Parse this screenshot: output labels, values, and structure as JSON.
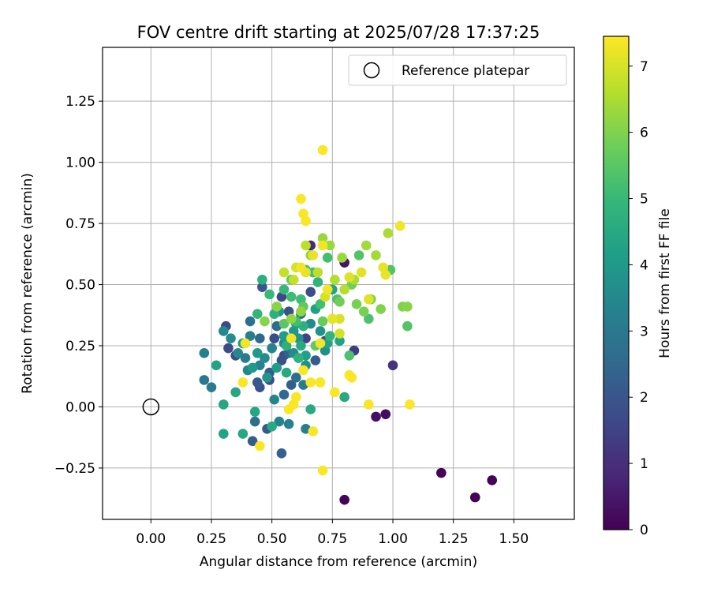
{
  "chart_data": {
    "type": "scatter",
    "title": "FOV centre drift starting at 2025/07/28 17:37:25",
    "xlabel": "Angular distance from reference (arcmin)",
    "ylabel": "Rotation from reference (arcmin)",
    "xlim": [
      -0.2,
      1.75
    ],
    "ylim": [
      -0.46,
      1.47
    ],
    "xticks": [
      0.0,
      0.25,
      0.5,
      0.75,
      1.0,
      1.25,
      1.5
    ],
    "xtick_labels": [
      "0.00",
      "0.25",
      "0.50",
      "0.75",
      "1.00",
      "1.25",
      "1.50"
    ],
    "yticks": [
      -0.25,
      0.0,
      0.25,
      0.5,
      0.75,
      1.0,
      1.25
    ],
    "ytick_labels": [
      "−0.25",
      "0.00",
      "0.25",
      "0.50",
      "0.75",
      "1.00",
      "1.25"
    ],
    "grid": true,
    "legend": {
      "position": "top-right",
      "entries": [
        {
          "label": "Reference platepar",
          "marker": "open-circle"
        }
      ]
    },
    "reference_point": {
      "label": "Reference platepar",
      "x": 0.0,
      "y": 0.0
    },
    "colorbar": {
      "label": "Hours from first FF file",
      "min": 0,
      "max": 7.45,
      "ticks": [
        0,
        1,
        2,
        3,
        4,
        5,
        6,
        7
      ],
      "colormap": "viridis",
      "colors": [
        "#440154",
        "#482878",
        "#3e4989",
        "#31688e",
        "#26828e",
        "#1f9e89",
        "#35b779",
        "#6ece58",
        "#b5de2b",
        "#fde725"
      ]
    },
    "series": [
      {
        "x_hours_y": [
          [
            0.8,
            -0.38,
            0.05
          ],
          [
            1.2,
            -0.27,
            0.05
          ],
          [
            1.34,
            -0.37,
            0.05
          ],
          [
            1.41,
            -0.3,
            0.05
          ],
          [
            0.93,
            -0.04,
            0.3
          ],
          [
            0.97,
            -0.03,
            0.3
          ],
          [
            0.8,
            0.59,
            0.4
          ],
          [
            0.66,
            0.66,
            0.9
          ],
          [
            1.0,
            0.17,
            1.1
          ],
          [
            0.84,
            0.23,
            1.3
          ],
          [
            0.31,
            0.33,
            1.6
          ],
          [
            0.32,
            0.24,
            1.7
          ],
          [
            0.35,
            0.21,
            1.8
          ],
          [
            0.54,
            0.45,
            1.6
          ],
          [
            0.64,
            0.28,
            1.5
          ],
          [
            0.57,
            0.39,
            1.9
          ],
          [
            0.51,
            0.28,
            1.7
          ],
          [
            0.55,
            0.21,
            1.8
          ],
          [
            0.45,
            0.08,
            1.9
          ],
          [
            0.49,
            0.11,
            1.7
          ],
          [
            0.72,
            0.27,
            1.6
          ],
          [
            0.66,
            0.47,
            1.8
          ],
          [
            0.54,
            0.19,
            1.9
          ],
          [
            0.46,
            0.49,
            2.0
          ],
          [
            0.44,
            0.1,
            2.1
          ],
          [
            0.42,
            -0.14,
            2.2
          ],
          [
            0.48,
            -0.09,
            2.1
          ],
          [
            0.54,
            -0.19,
            2.3
          ],
          [
            0.49,
            0.14,
            2.2
          ],
          [
            0.58,
            0.09,
            2.2
          ],
          [
            0.57,
            0.22,
            2.4
          ],
          [
            0.61,
            0.2,
            2.4
          ],
          [
            0.55,
            0.05,
            2.5
          ],
          [
            0.68,
            0.19,
            2.2
          ],
          [
            0.45,
            0.28,
            2.5
          ],
          [
            0.52,
            0.33,
            2.6
          ],
          [
            0.62,
            0.38,
            2.6
          ],
          [
            0.6,
            0.12,
            2.7
          ],
          [
            0.41,
            0.35,
            2.7
          ],
          [
            0.43,
            -0.06,
            2.7
          ],
          [
            0.22,
            0.11,
            3.0
          ],
          [
            0.25,
            0.08,
            3.1
          ],
          [
            0.22,
            0.22,
            3.2
          ],
          [
            0.39,
            0.2,
            3.1
          ],
          [
            0.41,
            0.29,
            3.2
          ],
          [
            0.45,
            0.17,
            3.3
          ],
          [
            0.5,
            0.24,
            3.3
          ],
          [
            0.53,
            -0.06,
            3.3
          ],
          [
            0.57,
            -0.07,
            3.3
          ],
          [
            0.64,
            -0.09,
            3.2
          ],
          [
            0.51,
            0.03,
            3.4
          ],
          [
            0.63,
            0.09,
            3.1
          ],
          [
            0.4,
            0.15,
            3.4
          ],
          [
            0.36,
            0.22,
            3.5
          ],
          [
            0.3,
            0.31,
            3.5
          ],
          [
            0.33,
            0.28,
            3.6
          ],
          [
            0.47,
            0.2,
            3.6
          ],
          [
            0.55,
            0.26,
            3.5
          ],
          [
            0.59,
            0.22,
            3.6
          ],
          [
            0.64,
            0.17,
            3.7
          ],
          [
            0.66,
            0.34,
            3.6
          ],
          [
            0.7,
            0.31,
            3.8
          ],
          [
            0.72,
            0.23,
            3.7
          ],
          [
            0.61,
            0.28,
            3.8
          ],
          [
            0.53,
            0.39,
            3.9
          ],
          [
            0.59,
            0.31,
            3.9
          ],
          [
            0.48,
            0.12,
            3.9
          ],
          [
            0.42,
            0.16,
            4.0
          ],
          [
            0.38,
            0.26,
            4.0
          ],
          [
            0.44,
            0.22,
            4.0
          ],
          [
            0.52,
            0.16,
            4.1
          ],
          [
            0.55,
            0.29,
            4.1
          ],
          [
            0.6,
            0.34,
            4.2
          ],
          [
            0.64,
            0.21,
            4.2
          ],
          [
            0.68,
            0.4,
            4.2
          ],
          [
            0.73,
            0.26,
            4.3
          ],
          [
            0.75,
            0.48,
            4.3
          ],
          [
            0.78,
            0.27,
            4.3
          ],
          [
            0.27,
            0.17,
            4.3
          ],
          [
            0.3,
            0.01,
            4.4
          ],
          [
            0.35,
            0.06,
            4.4
          ],
          [
            0.38,
            -0.11,
            4.4
          ],
          [
            0.3,
            -0.11,
            4.3
          ],
          [
            0.43,
            -0.02,
            4.4
          ],
          [
            0.5,
            -0.08,
            4.5
          ],
          [
            0.56,
            0.14,
            4.5
          ],
          [
            0.62,
            0.25,
            4.5
          ],
          [
            0.66,
            -0.01,
            4.5
          ],
          [
            0.8,
            0.04,
            4.5
          ],
          [
            0.46,
            0.52,
            4.7
          ],
          [
            0.51,
            0.38,
            4.7
          ],
          [
            0.56,
            0.25,
            4.7
          ],
          [
            0.61,
            0.2,
            4.8
          ],
          [
            0.63,
            0.33,
            4.7
          ],
          [
            0.69,
            0.51,
            4.8
          ],
          [
            0.74,
            0.29,
            4.9
          ],
          [
            0.44,
            0.38,
            4.9
          ],
          [
            0.49,
            0.46,
            5.0
          ],
          [
            0.55,
            0.48,
            5.0
          ],
          [
            0.58,
            0.45,
            5.1
          ],
          [
            0.62,
            0.44,
            5.1
          ],
          [
            0.67,
            0.55,
            5.2
          ],
          [
            0.7,
            0.42,
            5.2
          ],
          [
            0.64,
            0.56,
            5.1
          ],
          [
            0.6,
            0.35,
            5.2
          ],
          [
            0.73,
            0.61,
            5.2
          ],
          [
            0.77,
            0.44,
            5.3
          ],
          [
            0.82,
            0.21,
            5.3
          ],
          [
            0.86,
            0.62,
            5.4
          ],
          [
            0.9,
            0.36,
            5.3
          ],
          [
            0.99,
            0.56,
            5.4
          ],
          [
            1.06,
            0.33,
            5.4
          ],
          [
            0.55,
            0.34,
            5.5
          ],
          [
            0.58,
            0.52,
            5.6
          ],
          [
            0.63,
            0.41,
            5.6
          ],
          [
            0.68,
            0.25,
            5.6
          ],
          [
            0.71,
            0.35,
            5.7
          ],
          [
            0.75,
            0.36,
            5.8
          ],
          [
            0.78,
            0.43,
            5.8
          ],
          [
            0.83,
            0.5,
            5.8
          ],
          [
            0.85,
            0.42,
            5.9
          ],
          [
            0.88,
            0.39,
            5.9
          ],
          [
            0.91,
            0.44,
            6.0
          ],
          [
            0.95,
            0.4,
            6.0
          ],
          [
            1.04,
            0.41,
            6.0
          ],
          [
            1.06,
            0.41,
            6.1
          ],
          [
            0.47,
            0.35,
            6.1
          ],
          [
            0.52,
            0.41,
            6.1
          ],
          [
            0.58,
            0.36,
            6.2
          ],
          [
            0.62,
            0.39,
            6.2
          ],
          [
            0.66,
            0.62,
            6.2
          ],
          [
            0.71,
            0.69,
            6.3
          ],
          [
            0.74,
            0.66,
            6.3
          ],
          [
            0.79,
            0.61,
            6.3
          ],
          [
            0.89,
            0.66,
            6.4
          ],
          [
            0.93,
            0.62,
            6.4
          ],
          [
            0.98,
            0.71,
            6.5
          ],
          [
            0.84,
            0.52,
            6.5
          ],
          [
            0.8,
            0.48,
            6.6
          ],
          [
            0.76,
            0.52,
            6.6
          ],
          [
            0.69,
            0.55,
            6.7
          ],
          [
            0.64,
            0.66,
            6.7
          ],
          [
            0.59,
            0.52,
            6.8
          ],
          [
            0.55,
            0.55,
            6.8
          ],
          [
            0.6,
            0.57,
            7.0
          ],
          [
            0.72,
            0.45,
            7.0
          ],
          [
            0.78,
            0.36,
            7.0
          ],
          [
            0.82,
            0.53,
            7.1
          ],
          [
            0.87,
            0.55,
            7.1
          ],
          [
            0.96,
            0.57,
            7.2
          ],
          [
            0.97,
            0.54,
            7.2
          ],
          [
            0.9,
            0.44,
            7.1
          ],
          [
            0.78,
            0.3,
            7.0
          ],
          [
            0.71,
            1.05,
            7.4
          ],
          [
            0.62,
            0.85,
            7.4
          ],
          [
            0.63,
            0.79,
            7.4
          ],
          [
            0.64,
            0.76,
            7.4
          ],
          [
            1.03,
            0.74,
            7.3
          ],
          [
            0.71,
            0.66,
            7.3
          ],
          [
            0.67,
            0.62,
            7.2
          ],
          [
            0.64,
            0.55,
            7.2
          ],
          [
            0.62,
            0.57,
            7.3
          ],
          [
            0.73,
            0.48,
            7.3
          ],
          [
            0.58,
            0.28,
            7.3
          ],
          [
            0.63,
            0.15,
            7.4
          ],
          [
            0.66,
            0.1,
            7.4
          ],
          [
            0.7,
            0.26,
            7.3
          ],
          [
            0.7,
            0.1,
            7.4
          ],
          [
            0.6,
            0.04,
            7.4
          ],
          [
            0.59,
            0.01,
            7.4
          ],
          [
            0.57,
            -0.01,
            7.4
          ],
          [
            0.67,
            -0.1,
            7.4
          ],
          [
            0.71,
            -0.26,
            7.4
          ],
          [
            0.45,
            -0.16,
            7.4
          ],
          [
            0.38,
            0.1,
            7.4
          ],
          [
            0.39,
            0.26,
            7.3
          ],
          [
            0.76,
            0.06,
            7.4
          ],
          [
            0.82,
            0.13,
            7.4
          ],
          [
            0.83,
            0.12,
            7.4
          ],
          [
            0.9,
            0.01,
            7.4
          ],
          [
            1.07,
            0.01,
            7.4
          ],
          [
            0.75,
            0.36,
            7.2
          ]
        ]
      }
    ]
  }
}
